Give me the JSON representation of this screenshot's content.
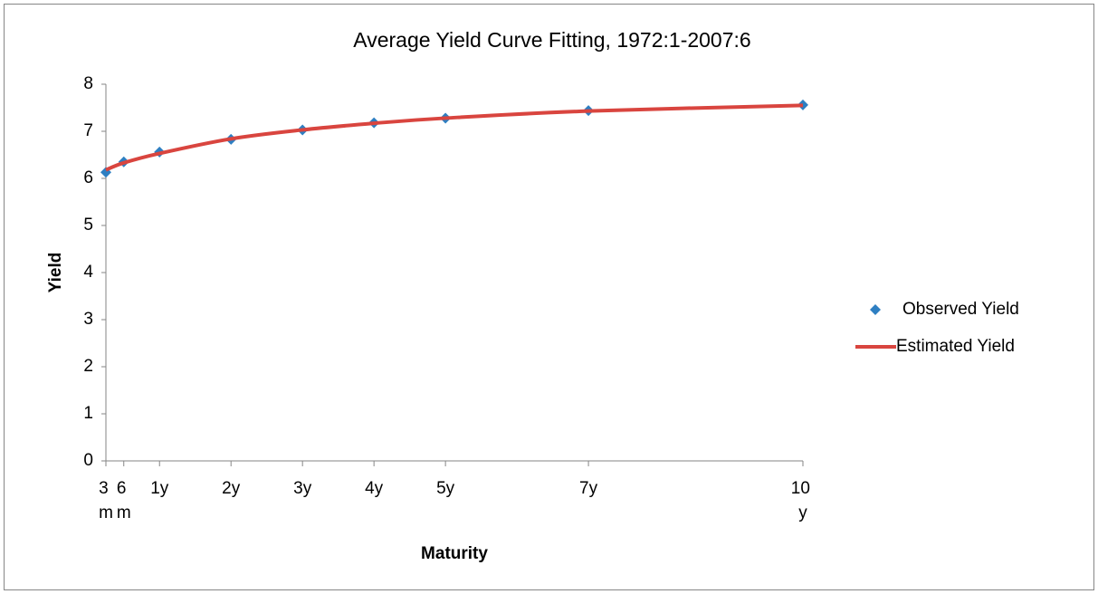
{
  "chart_data": {
    "type": "line",
    "title": "Average Yield Curve Fitting, 1972:1-2007:6",
    "x_label": "Maturity",
    "y_label": "Yield",
    "x": [
      3,
      6,
      12,
      24,
      36,
      48,
      60,
      84,
      120
    ],
    "series": [
      {
        "name": "Observed Yield",
        "color": "#2e7fc2",
        "style": "markers",
        "values": [
          6.13,
          6.35,
          6.56,
          6.83,
          7.03,
          7.18,
          7.28,
          7.44,
          7.56
        ]
      },
      {
        "name": "Estimated Yield",
        "color": "#d9453f",
        "style": "line",
        "values": [
          6.18,
          6.33,
          6.53,
          6.84,
          7.03,
          7.17,
          7.28,
          7.43,
          7.55
        ]
      }
    ],
    "xlim": [
      3,
      120
    ],
    "xticks": [
      {
        "value": 3,
        "label": "3 m"
      },
      {
        "value": 6,
        "label": "6 m"
      },
      {
        "value": 12,
        "label": "1y"
      },
      {
        "value": 24,
        "label": "2y"
      },
      {
        "value": 36,
        "label": "3y"
      },
      {
        "value": 48,
        "label": "4y"
      },
      {
        "value": 60,
        "label": "5y"
      },
      {
        "value": 84,
        "label": "7y"
      },
      {
        "value": 120,
        "label": "10 y"
      }
    ],
    "ylim": [
      0,
      8
    ],
    "yticks": [
      0,
      1,
      2,
      3,
      4,
      5,
      6,
      7,
      8
    ],
    "legend": "right"
  }
}
